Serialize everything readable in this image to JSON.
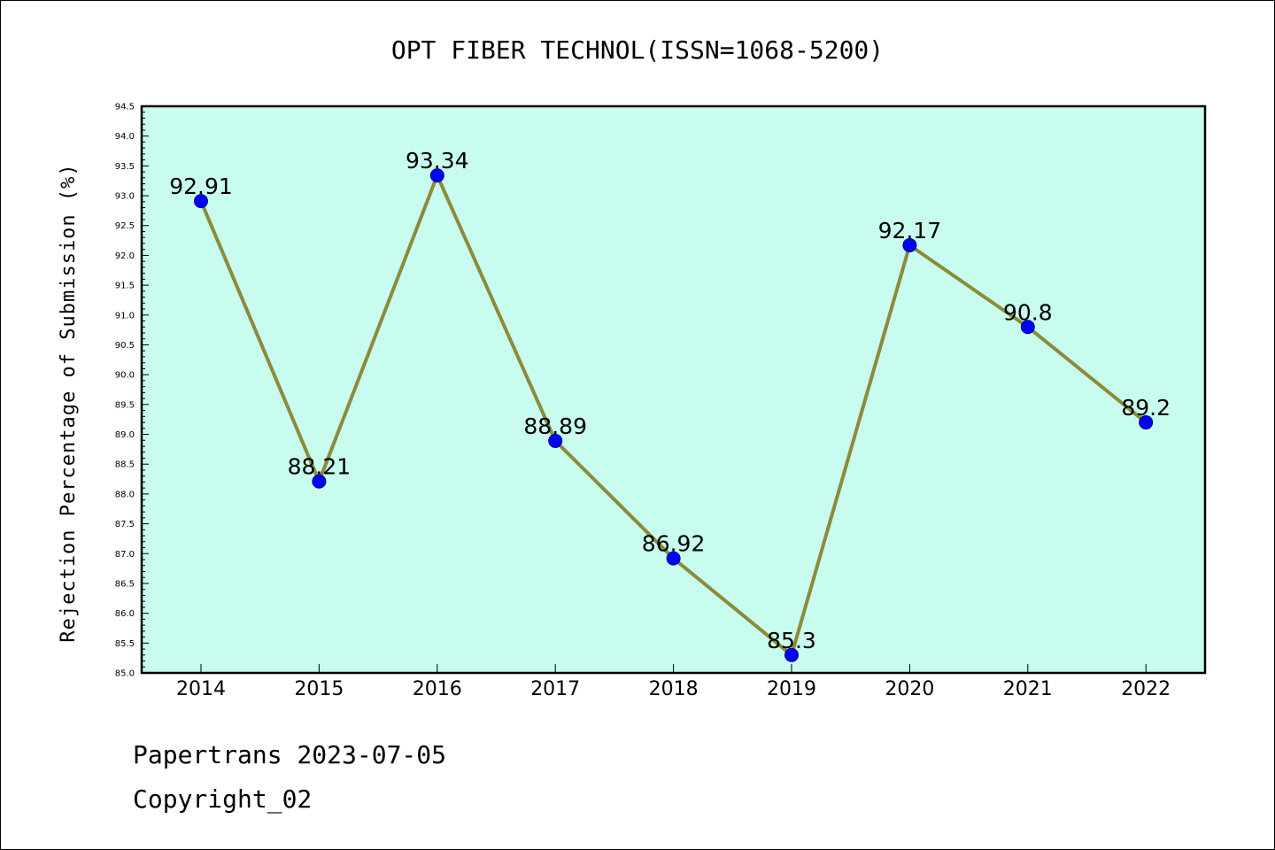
{
  "chart_data": {
    "type": "line",
    "title": "OPT FIBER TECHNOL(ISSN=1068-5200)",
    "xlabel": "",
    "ylabel": "Rejection Percentage of Submission (%)",
    "categories": [
      "2014",
      "2015",
      "2016",
      "2017",
      "2018",
      "2019",
      "2020",
      "2021",
      "2022"
    ],
    "series": [
      {
        "values": [
          92.91,
          88.21,
          93.34,
          88.89,
          86.92,
          85.3,
          92.17,
          90.8,
          89.2
        ],
        "labels": [
          "92.91",
          "88.21",
          "93.34",
          "88.89",
          "86.92",
          "85.3",
          "92.17",
          "90.8",
          "89.2"
        ]
      }
    ],
    "ylim": [
      85.0,
      94.5
    ],
    "yticks": [
      "85.0",
      "85.5",
      "86.0",
      "86.5",
      "87.0",
      "87.5",
      "88.0",
      "88.5",
      "89.0",
      "89.5",
      "90.0",
      "90.5",
      "91.0",
      "91.5",
      "92.0",
      "92.5",
      "93.0",
      "93.5",
      "94.0",
      "94.5"
    ],
    "grid": false,
    "colors": {
      "plot_background": "#c8fcee",
      "line": "#8b8b3a",
      "marker": "#0000ff"
    }
  },
  "footer": {
    "line1": "Papertrans 2023-07-05",
    "line2": "Copyright_02"
  }
}
